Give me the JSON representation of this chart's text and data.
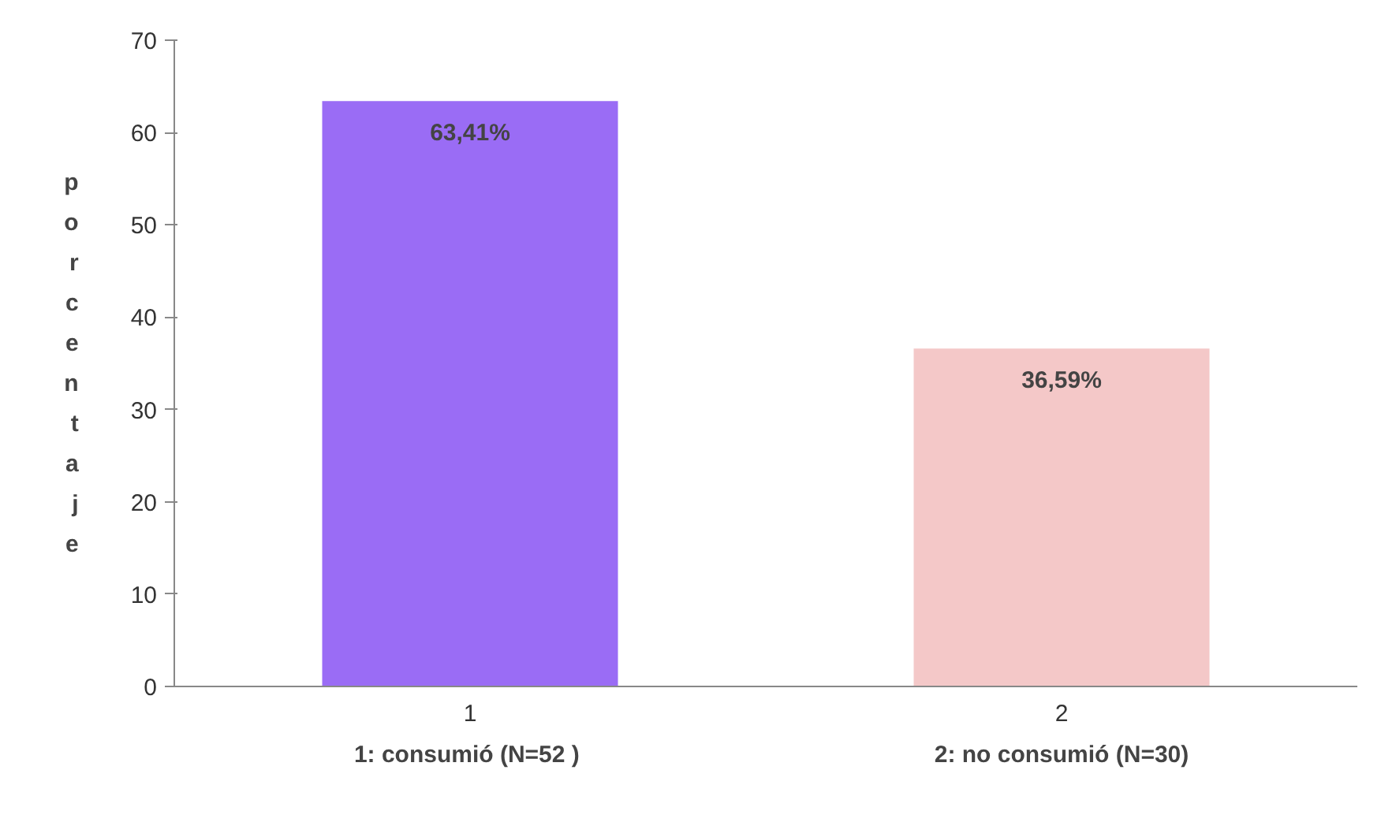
{
  "chart_data": {
    "type": "bar",
    "categories": [
      "1",
      "2"
    ],
    "values": [
      63.41,
      36.59
    ],
    "colors": [
      "#9a6cf5",
      "#f4c8c8"
    ],
    "value_labels": [
      "63,41%",
      "36,59%"
    ],
    "ylabel": "porcentaje",
    "ylim": [
      0,
      70
    ],
    "yticks": [
      0,
      10,
      20,
      30,
      40,
      50,
      60,
      70
    ],
    "annotations": [
      "1: consumió (N=52  )",
      "2: no consumió (N=30)"
    ],
    "grid": false
  }
}
